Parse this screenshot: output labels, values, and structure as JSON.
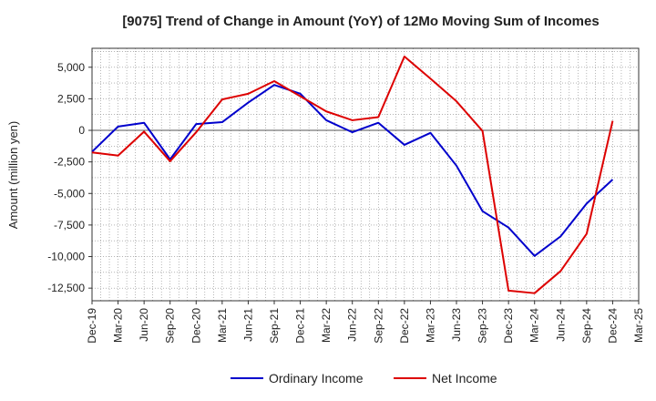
{
  "chart_data": {
    "type": "line",
    "title": "[9075]  Trend of Change in Amount (YoY) of 12Mo Moving Sum of Incomes",
    "xlabel": "",
    "ylabel": "Amount (million yen)",
    "ylim": [
      -13500,
      6500
    ],
    "yticks": [
      5000,
      2500,
      0,
      -2500,
      -5000,
      -7500,
      -10000,
      -12500
    ],
    "ytick_labels": [
      "5,000",
      "2,500",
      "0",
      "-2,500",
      "-5,000",
      "-7,500",
      "-10,000",
      "-12,500"
    ],
    "categories": [
      "Dec-19",
      "Mar-20",
      "Jun-20",
      "Sep-20",
      "Dec-20",
      "Mar-21",
      "Jun-21",
      "Sep-21",
      "Dec-21",
      "Mar-22",
      "Jun-22",
      "Sep-22",
      "Dec-22",
      "Mar-23",
      "Jun-23",
      "Sep-23",
      "Dec-23",
      "Mar-24",
      "Jun-24",
      "Sep-24",
      "Dec-24",
      "Mar-25"
    ],
    "grid": true,
    "legend_position": "bottom",
    "series": [
      {
        "name": "Ordinary Income",
        "color": "#0000cc",
        "values": [
          -1700,
          300,
          600,
          -2300,
          500,
          650,
          2200,
          3600,
          2900,
          800,
          -150,
          600,
          -1150,
          -200,
          -2800,
          -6400,
          -7700,
          -9950,
          -8400,
          -5800,
          -3900,
          null
        ]
      },
      {
        "name": "Net Income",
        "color": "#dd0000",
        "values": [
          -1750,
          -2000,
          -100,
          -2450,
          -150,
          2450,
          2900,
          3900,
          2700,
          1500,
          800,
          1050,
          5850,
          4100,
          2300,
          -50,
          -12700,
          -12900,
          -11150,
          -8200,
          750,
          null
        ]
      }
    ]
  }
}
